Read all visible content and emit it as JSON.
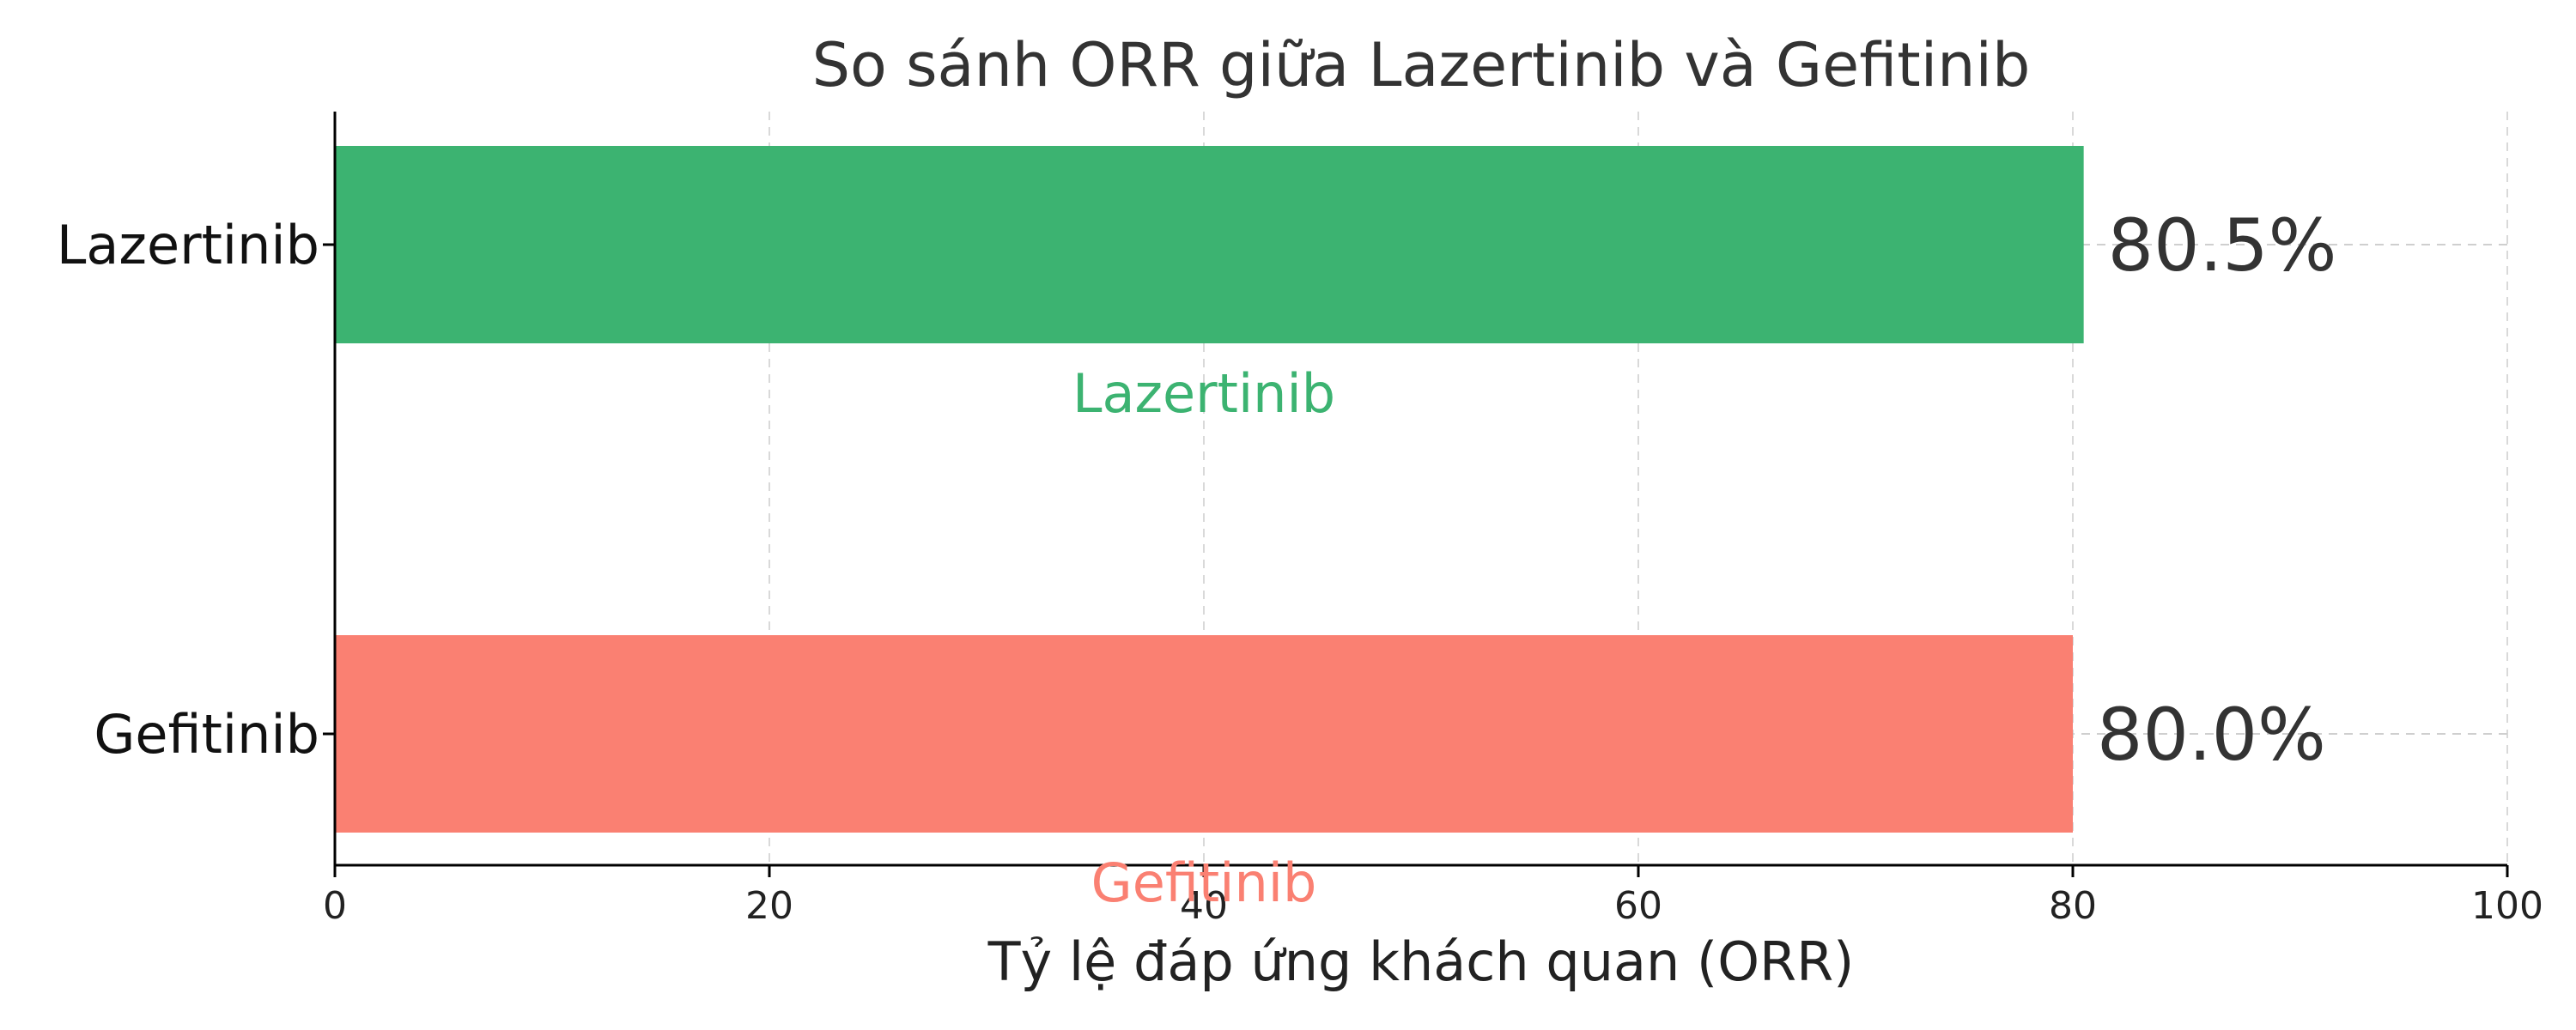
{
  "chart_data": {
    "type": "bar",
    "orientation": "horizontal",
    "title": "So sánh ORR giữa Lazertinib và Gefitinib",
    "xlabel": "Tỷ lệ đáp ứng khách quan (ORR)",
    "ylabel": "",
    "xlim": [
      0,
      100
    ],
    "xticks": [
      0,
      20,
      40,
      60,
      80,
      100
    ],
    "grid": true,
    "categories": [
      "Lazertinib",
      "Gefitinib"
    ],
    "values": [
      80.5,
      80.0
    ],
    "value_labels": [
      "80.5%",
      "80.0%"
    ],
    "colors": [
      "#3cb371",
      "#fa8072"
    ],
    "annotations": [
      {
        "text": "Lazertinib",
        "x": 40,
        "color": "#3cb371"
      },
      {
        "text": "Gefitinib",
        "x": 40,
        "color": "#fa8072"
      }
    ]
  }
}
